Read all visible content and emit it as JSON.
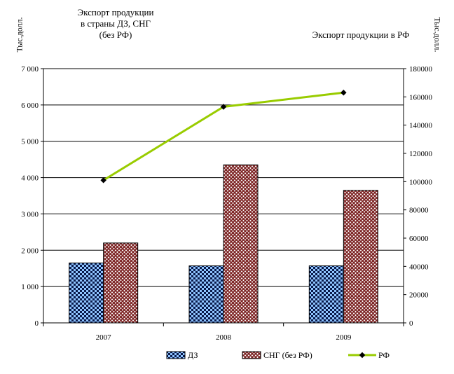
{
  "chart_data": {
    "type": "bar",
    "title_left": "Экспорт продукции в страны ДЗ, СНГ (без РФ)",
    "title_right": "Экспорт продукции в РФ",
    "ylabel_left": "Тыс.долл.",
    "ylabel_right": "Тыс.долл.",
    "categories": [
      "2007",
      "2008",
      "2009"
    ],
    "ylim_left": [
      0,
      7000
    ],
    "ylim_right": [
      0,
      180000
    ],
    "left_ticks": [
      "0",
      "1 000",
      "2 000",
      "3 000",
      "4 000",
      "5 000",
      "6 000",
      "7 000"
    ],
    "right_ticks": [
      "0",
      "20000",
      "40000",
      "60000",
      "80000",
      "100000",
      "120000",
      "140000",
      "160000",
      "180000"
    ],
    "series": [
      {
        "name": "ДЗ",
        "type": "bar",
        "axis": "left",
        "values": [
          1650,
          1570,
          1570
        ],
        "color": "#8fc4ff"
      },
      {
        "name": "СНГ (без РФ)",
        "type": "bar",
        "axis": "left",
        "values": [
          2200,
          4350,
          3650
        ],
        "color": "#7a1f1f"
      },
      {
        "name": "РФ",
        "type": "line",
        "axis": "right",
        "values": [
          101000,
          153000,
          163000
        ],
        "color": "#99cc00"
      }
    ],
    "grid": true,
    "legend_position": "bottom"
  }
}
